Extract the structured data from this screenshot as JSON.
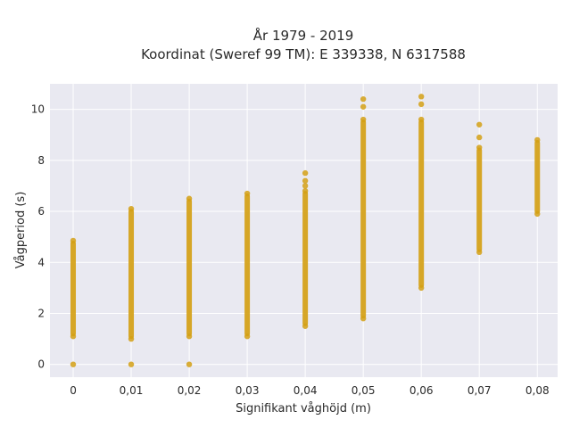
{
  "chart_data": {
    "type": "scatter",
    "title_line1": "År 1979 - 2019",
    "title_line2": "Koordinat (Sweref 99 TM): E 339338, N 6317588",
    "xlabel": "Signifikant våghöjd (m)",
    "ylabel": "Vågperiod (s)",
    "x_ticks": [
      "0",
      "0,01",
      "0,02",
      "0,03",
      "0,04",
      "0,05",
      "0,06",
      "0,07",
      "0,08"
    ],
    "y_ticks": [
      "0",
      "2",
      "4",
      "6",
      "8",
      "10"
    ],
    "xlim": [
      -0.004,
      0.0835
    ],
    "ylim": [
      -0.5,
      11
    ],
    "grid": true,
    "marker_color": "#d4a015",
    "plot_background": "#e9e9f1",
    "series": [
      {
        "columns": [
          {
            "x": 0.0,
            "ymin": 1.1,
            "ymax": 4.85,
            "outliers": [
              0.0
            ]
          },
          {
            "x": 0.01,
            "ymin": 1.0,
            "ymax": 6.1,
            "outliers": [
              0.0
            ]
          },
          {
            "x": 0.02,
            "ymin": 1.1,
            "ymax": 6.5,
            "outliers": [
              0.0
            ]
          },
          {
            "x": 0.03,
            "ymin": 1.1,
            "ymax": 6.7,
            "outliers": []
          },
          {
            "x": 0.04,
            "ymin": 1.5,
            "ymax": 6.8,
            "outliers": [
              7.0,
              7.2,
              7.5
            ]
          },
          {
            "x": 0.05,
            "ymin": 1.8,
            "ymax": 9.6,
            "outliers": [
              10.1,
              10.4
            ]
          },
          {
            "x": 0.06,
            "ymin": 3.0,
            "ymax": 9.6,
            "outliers": [
              10.2,
              10.5
            ]
          },
          {
            "x": 0.07,
            "ymin": 4.4,
            "ymax": 8.5,
            "outliers": [
              8.9,
              9.4
            ]
          },
          {
            "x": 0.08,
            "ymin": 5.9,
            "ymax": 8.8,
            "outliers": []
          }
        ]
      }
    ]
  }
}
